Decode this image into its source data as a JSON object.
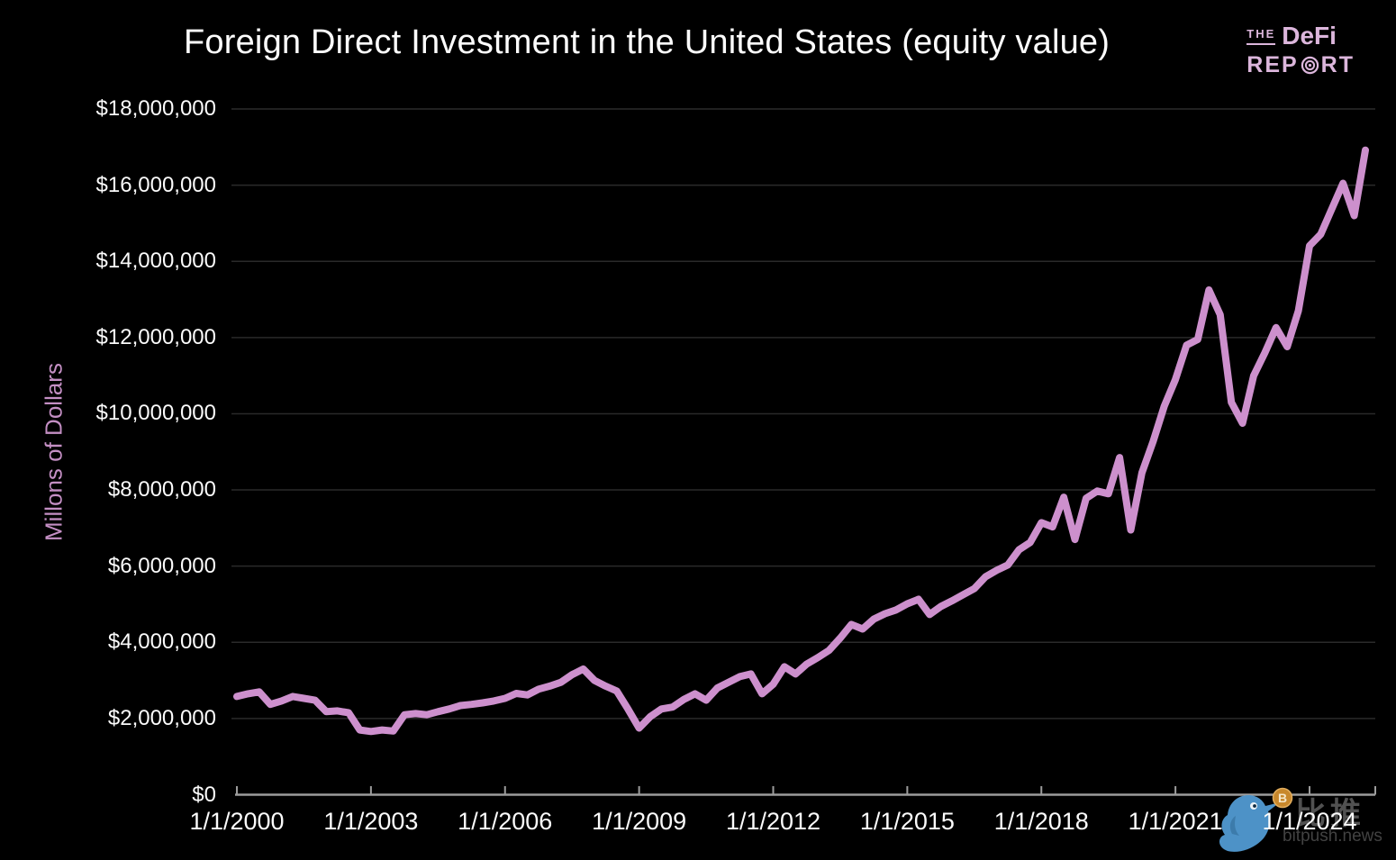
{
  "logo": {
    "the": "THE",
    "defi": "DeFi",
    "rep": "REP",
    "rt": "RT"
  },
  "watermark": {
    "text_cn": "比推",
    "text_en": "bitpush.news"
  },
  "colors": {
    "background": "#000000",
    "line_pink": "#cd90cd",
    "logo_pink": "#dcb6dc",
    "axis_title_pink": "#c48fc4",
    "gridline_gray": "#2a2a2a",
    "axis_gray": "#9c9c9c",
    "watermark_blue": "#4d92c7",
    "coin_orange": "#c8882c"
  },
  "chart_data": {
    "type": "line",
    "title": "Foreign Direct Investment in the United States (equity value)",
    "xlabel": "",
    "ylabel": "Millons of Dollars",
    "ylim": [
      0,
      18000000
    ],
    "grid": true,
    "legend": "none",
    "line_color": "#cd90cd",
    "y_tick_labels": [
      "$18,000,000",
      "$16,000,000",
      "$14,000,000",
      "$12,000,000",
      "$10,000,000",
      "$8,000,000",
      "$6,000,000",
      "$4,000,000",
      "$2,000,000",
      "$0"
    ],
    "x_tick_labels": [
      "1/1/2000",
      "1/1/2003",
      "1/1/2006",
      "1/1/2009",
      "1/1/2012",
      "1/1/2015",
      "1/1/2018",
      "1/1/2021",
      "1/1/2024"
    ],
    "x_start_year": 2000,
    "x_step_years": 0.25,
    "series_unit": "millions of dollars, quarterly",
    "values": [
      2580000,
      2650000,
      2700000,
      2370000,
      2460000,
      2580000,
      2530000,
      2480000,
      2180000,
      2200000,
      2150000,
      1700000,
      1660000,
      1700000,
      1670000,
      2100000,
      2130000,
      2100000,
      2180000,
      2250000,
      2340000,
      2370000,
      2410000,
      2460000,
      2530000,
      2660000,
      2620000,
      2770000,
      2850000,
      2950000,
      3150000,
      3300000,
      3000000,
      2850000,
      2720000,
      2250000,
      1750000,
      2050000,
      2250000,
      2300000,
      2500000,
      2650000,
      2480000,
      2800000,
      2950000,
      3100000,
      3170000,
      2650000,
      2900000,
      3360000,
      3170000,
      3430000,
      3600000,
      3790000,
      4110000,
      4470000,
      4350000,
      4610000,
      4750000,
      4850000,
      5010000,
      5130000,
      4730000,
      4940000,
      5090000,
      5250000,
      5410000,
      5720000,
      5890000,
      6030000,
      6430000,
      6620000,
      7140000,
      7030000,
      7810000,
      6700000,
      7780000,
      7970000,
      7900000,
      8850000,
      6950000,
      8450000,
      9270000,
      10200000,
      10900000,
      11800000,
      11950000,
      13250000,
      12600000,
      10300000,
      9750000,
      11000000,
      11600000,
      12260000,
      11760000,
      12700000,
      14410000,
      14710000,
      15380000,
      16050000,
      15200000,
      16920000
    ]
  }
}
